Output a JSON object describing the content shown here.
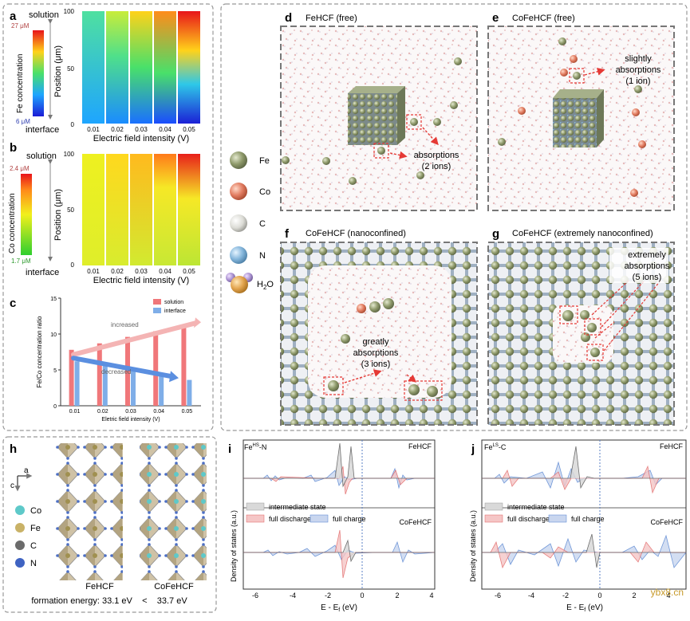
{
  "colors": {
    "solution": "#f0777a",
    "interface": "#7faee8",
    "fe": "#8f9a6b",
    "co": "#e27d62",
    "c": "#dcdcd6",
    "n": "#86b7dc",
    "h2o": "#e3a54f",
    "dash": "#888888",
    "accent_red": "#e53935"
  },
  "panel_a": {
    "letter": "a",
    "legend_title": "Fe concentration",
    "legend_max": "27 μM",
    "legend_min": "6 μM",
    "top_label": "solution",
    "bottom_label": "interface",
    "ylabel": "Position (μm)",
    "xlabel": "Electric field intensity (V)",
    "yticks": [
      "100",
      "50",
      "0"
    ],
    "xticks": [
      "0.01",
      "0.02",
      "0.03",
      "0.04",
      "0.05"
    ]
  },
  "panel_b": {
    "letter": "b",
    "legend_title": "Co concentration",
    "legend_max": "2.4 μM",
    "legend_min": "1.7 μM",
    "top_label": "solution",
    "bottom_label": "interface",
    "ylabel": "Position (μm)",
    "xlabel": "Electric field intensity (V)",
    "yticks": [
      "100",
      "50",
      "0"
    ],
    "xticks": [
      "0.01",
      "0.02",
      "0.03",
      "0.04",
      "0.05"
    ]
  },
  "panel_c": {
    "letter": "c",
    "annotation_up": "increased",
    "annotation_down": "decreased"
  },
  "chart_data": {
    "type": "bar",
    "title": "",
    "xlabel": "Eletric field intensity (V)",
    "ylabel": "Fe/Co concentration ratio",
    "categories": [
      "0.01",
      "0.02",
      "0.03",
      "0.04",
      "0.05"
    ],
    "series": [
      {
        "name": "solution",
        "values": [
          7.8,
          8.7,
          9.6,
          10.4,
          11.3
        ]
      },
      {
        "name": "interface",
        "values": [
          6.2,
          5.6,
          4.9,
          4.2,
          3.6
        ]
      }
    ],
    "ylim": [
      0,
      15
    ],
    "yticks": [
      "0",
      "5",
      "10",
      "15"
    ],
    "legend": "top-right"
  },
  "legend_atoms": {
    "items": [
      {
        "key": "fe",
        "label": "Fe"
      },
      {
        "key": "co",
        "label": "Co"
      },
      {
        "key": "c",
        "label": "C"
      },
      {
        "key": "n",
        "label": "N"
      }
    ],
    "h2o_main": "H",
    "h2o_sub": "2",
    "h2o_tail": "O"
  },
  "panel_d": {
    "letter": "d",
    "title": "FeHCF (free)",
    "annotation_line1": "absorptions",
    "annotation_line2": "(2 ions)"
  },
  "panel_e": {
    "letter": "e",
    "title": "CoFeHCF (free)",
    "annotation_line1": "slightly",
    "annotation_line2": "absorptions",
    "annotation_line3": "(1 ion)"
  },
  "panel_f": {
    "letter": "f",
    "title": "CoFeHCF (nanoconfined)",
    "annotation_line1": "greatly",
    "annotation_line2": "absorptions",
    "annotation_line3": "(3 ions)"
  },
  "panel_g": {
    "letter": "g",
    "title": "CoFeHCF (extremely nanoconfined)",
    "annotation_line1": "extremely",
    "annotation_line2": "absorptions",
    "annotation_line3": "(5 ions)"
  },
  "panel_h": {
    "letter": "h",
    "axis_c": "c",
    "axis_a": "a",
    "legend": [
      {
        "key": "co",
        "label": "Co"
      },
      {
        "key": "fe",
        "label": "Fe"
      },
      {
        "key": "c",
        "label": "C"
      },
      {
        "key": "n",
        "label": "N"
      }
    ],
    "label_left": "FeHCF",
    "label_right": "CoFeHCF",
    "formation_energy": "formation energy: 33.1 eV    <    33.7 eV"
  },
  "panel_i": {
    "letter": "i",
    "site_main": "Fe",
    "site_sup": "HS",
    "site_tail": "-N",
    "top_label": "FeHCF",
    "bottom_label": "CoFeHCF",
    "ylabel": "Density of states (a.u.)",
    "xlabel_main": "E - E",
    "xlabel_sub": "f",
    "xlabel_tail": " (eV)",
    "xticks": [
      "-6",
      "-4",
      "-2",
      "0",
      "2",
      "4"
    ],
    "legend_gray": "intermediate state",
    "legend_red": "full discharge",
    "legend_blue": "full charge"
  },
  "panel_j": {
    "letter": "j",
    "site_main": "Fe",
    "site_sup": "LS",
    "site_tail": "-C",
    "top_label": "FeHCF",
    "bottom_label": "CoFeHCF",
    "ylabel": "Density of states (a.u.)",
    "xlabel_main": "E - E",
    "xlabel_sub": "f",
    "xlabel_tail": " (eV)",
    "xticks": [
      "-6",
      "-4",
      "-2",
      "0",
      "2",
      "4"
    ],
    "legend_gray": "intermediate state",
    "legend_red": "full discharge",
    "legend_blue": "full charge"
  },
  "watermark": "ybx8.cn"
}
